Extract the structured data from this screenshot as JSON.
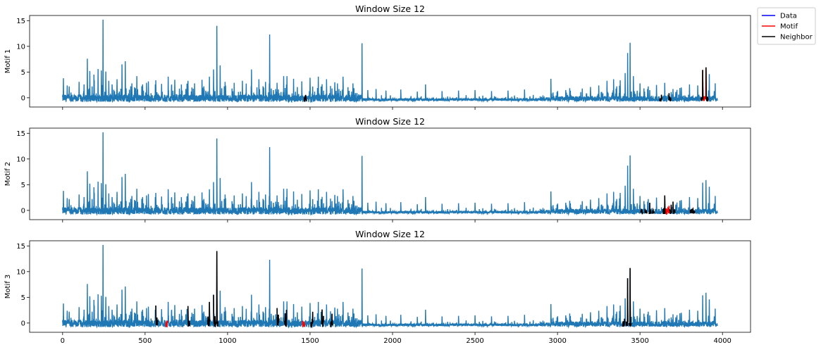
{
  "legend": {
    "position": "top-right, outside plot area",
    "entries": [
      {
        "label": "Data",
        "color": "#0000ff"
      },
      {
        "label": "Motif",
        "color": "#ff0000"
      },
      {
        "label": "Neighbor",
        "color": "#000000"
      }
    ]
  },
  "chart_data": [
    {
      "type": "line",
      "title": "Window Size 12",
      "ylabel": "Motif 1",
      "xlabel": "",
      "xlim": [
        -200,
        4170
      ],
      "ylim": [
        -1.8,
        16
      ],
      "yticks": [
        0,
        5,
        10,
        15
      ],
      "xticks": [
        0,
        500,
        1000,
        1500,
        2000,
        2500,
        3000,
        3500,
        4000
      ],
      "show_xtick_labels": false,
      "series": [
        {
          "name": "Data",
          "color": "#1f77b4",
          "role": "data",
          "length": 3970,
          "spikes": [
            [
              5,
              3.8
            ],
            [
              40,
              2.2
            ],
            [
              100,
              3.1
            ],
            [
              130,
              2.6
            ],
            [
              150,
              7.6
            ],
            [
              165,
              5.2
            ],
            [
              190,
              4.5
            ],
            [
              215,
              5.6
            ],
            [
              235,
              5.3
            ],
            [
              245,
              15.2
            ],
            [
              262,
              5.1
            ],
            [
              280,
              3.3
            ],
            [
              300,
              2.6
            ],
            [
              330,
              3.6
            ],
            [
              360,
              6.5
            ],
            [
              380,
              7.1
            ],
            [
              420,
              2.8
            ],
            [
              450,
              4.2
            ],
            [
              485,
              2.6
            ],
            [
              520,
              3.2
            ],
            [
              565,
              3.4
            ],
            [
              600,
              2.7
            ],
            [
              640,
              4.1
            ],
            [
              680,
              3.5
            ],
            [
              720,
              2.6
            ],
            [
              760,
              3.3
            ],
            [
              800,
              2.8
            ],
            [
              845,
              3.5
            ],
            [
              890,
              4.1
            ],
            [
              915,
              5.5
            ],
            [
              935,
              14.0
            ],
            [
              955,
              6.3
            ],
            [
              985,
              3.1
            ],
            [
              1040,
              2.9
            ],
            [
              1090,
              3.3
            ],
            [
              1145,
              5.5
            ],
            [
              1190,
              3.6
            ],
            [
              1230,
              3.1
            ],
            [
              1255,
              12.3
            ],
            [
              1300,
              2.9
            ],
            [
              1340,
              4.2
            ],
            [
              1360,
              4.2
            ],
            [
              1400,
              3.7
            ],
            [
              1450,
              3.2
            ],
            [
              1500,
              3.9
            ],
            [
              1550,
              4.1
            ],
            [
              1600,
              3.6
            ],
            [
              1650,
              3.0
            ],
            [
              1700,
              4.1
            ],
            [
              1760,
              2.8
            ],
            [
              1815,
              10.6
            ],
            [
              1850,
              1.5
            ],
            [
              1900,
              1.7
            ],
            [
              1960,
              1.4
            ],
            [
              2050,
              1.6
            ],
            [
              2150,
              1.2
            ],
            [
              2200,
              2.6
            ],
            [
              2300,
              1.3
            ],
            [
              2400,
              1.4
            ],
            [
              2500,
              1.5
            ],
            [
              2600,
              1.3
            ],
            [
              2700,
              1.4
            ],
            [
              2800,
              1.6
            ],
            [
              2960,
              3.7
            ],
            [
              3050,
              1.5
            ],
            [
              3150,
              1.8
            ],
            [
              3200,
              2.1
            ],
            [
              3250,
              2.4
            ],
            [
              3300,
              3.3
            ],
            [
              3340,
              3.6
            ],
            [
              3380,
              3.4
            ],
            [
              3410,
              4.8
            ],
            [
              3425,
              8.7
            ],
            [
              3440,
              10.7
            ],
            [
              3460,
              4.2
            ],
            [
              3500,
              2.8
            ],
            [
              3550,
              2.2
            ],
            [
              3600,
              2.5
            ],
            [
              3650,
              2.9
            ],
            [
              3700,
              1.7
            ],
            [
              3750,
              2.0
            ],
            [
              3800,
              2.6
            ],
            [
              3850,
              2.4
            ],
            [
              3880,
              5.4
            ],
            [
              3900,
              5.9
            ],
            [
              3920,
              4.6
            ],
            [
              3950,
              1.3
            ]
          ]
        },
        {
          "name": "Motif",
          "color": "#ff0000",
          "role": "motif",
          "segments": [
            [
              3878,
              3890
            ],
            [
              3892,
              3904
            ]
          ]
        },
        {
          "name": "Neighbor",
          "color": "#000000",
          "role": "neighbor",
          "segments": [
            [
              1465,
              1477
            ],
            [
              3620,
              3632
            ],
            [
              3675,
              3687
            ],
            [
              3870,
              3882
            ],
            [
              3900,
              3912
            ]
          ]
        }
      ]
    },
    {
      "type": "line",
      "title": "Window Size 12",
      "ylabel": "Motif 2",
      "xlabel": "",
      "xlim": [
        -200,
        4170
      ],
      "ylim": [
        -1.8,
        16
      ],
      "yticks": [
        0,
        5,
        10,
        15
      ],
      "xticks": [
        0,
        500,
        1000,
        1500,
        2000,
        2500,
        3000,
        3500,
        4000
      ],
      "show_xtick_labels": false,
      "series": [
        {
          "name": "Data",
          "color": "#1f77b4",
          "role": "data",
          "length": 3970,
          "spikes": "same as panel 1"
        },
        {
          "name": "Motif",
          "color": "#ff0000",
          "role": "motif",
          "segments": [
            [
              3655,
              3667
            ],
            [
              3668,
              3680
            ]
          ]
        },
        {
          "name": "Neighbor",
          "color": "#000000",
          "role": "neighbor",
          "segments": [
            [
              3505,
              3517
            ],
            [
              3530,
              3542
            ],
            [
              3555,
              3567
            ],
            [
              3575,
              3587
            ],
            [
              3640,
              3652
            ],
            [
              3680,
              3692
            ],
            [
              3700,
              3712
            ],
            [
              3805,
              3817
            ],
            [
              3820,
              3832
            ]
          ]
        }
      ]
    },
    {
      "type": "line",
      "title": "Window Size 12",
      "ylabel": "Motif 3",
      "xlabel": "",
      "xlim": [
        -200,
        4170
      ],
      "ylim": [
        -1.8,
        16
      ],
      "yticks": [
        0,
        5,
        10,
        15
      ],
      "xticks": [
        0,
        500,
        1000,
        1500,
        2000,
        2500,
        3000,
        3500,
        4000
      ],
      "show_xtick_labels": true,
      "series": [
        {
          "name": "Data",
          "color": "#1f77b4",
          "role": "data",
          "length": 3970,
          "spikes": "same as panel 1"
        },
        {
          "name": "Motif",
          "color": "#ff0000",
          "role": "motif",
          "segments": [
            [
              625,
              637
            ],
            [
              1455,
              1467
            ]
          ]
        },
        {
          "name": "Neighbor",
          "color": "#000000",
          "role": "neighbor",
          "segments": [
            [
              565,
              577
            ],
            [
              760,
              772
            ],
            [
              880,
              892
            ],
            [
              915,
              927
            ],
            [
              930,
              942
            ],
            [
              1300,
              1312
            ],
            [
              1345,
              1357
            ],
            [
              1505,
              1517
            ],
            [
              1570,
              1582
            ],
            [
              1625,
              1637
            ],
            [
              3395,
              3407
            ],
            [
              3415,
              3427
            ],
            [
              3435,
              3447
            ]
          ]
        }
      ]
    }
  ]
}
